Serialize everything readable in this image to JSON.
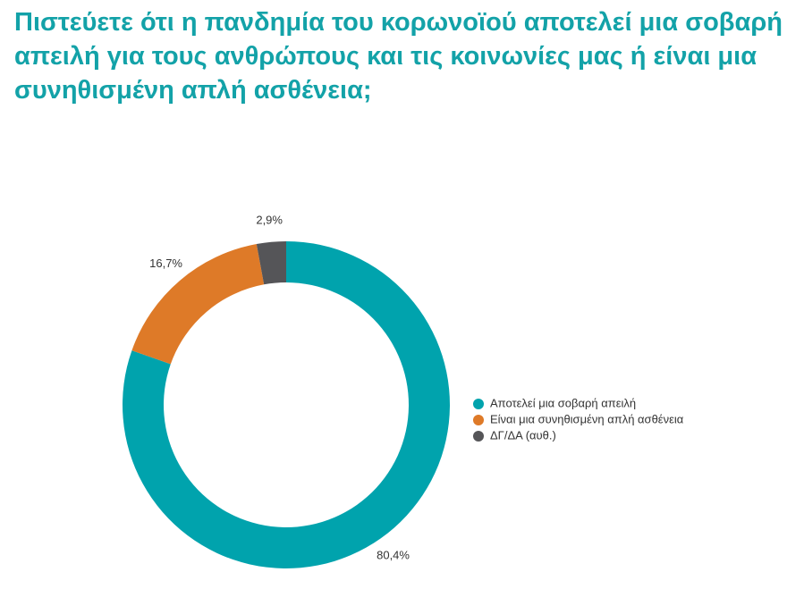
{
  "chart_data": {
    "type": "donut",
    "title": "Πιστεύετε ότι η πανδημία του κορωνοϊού αποτελεί μια σοβαρή απειλή για τους ανθρώπους και τις κοινωνίες μας ή είναι μια συνηθισμένη απλή ασθένεια;",
    "categories": [
      "Αποτελεί μια σοβαρή απειλή",
      "Είναι μια συνηθισμένη απλή ασθένεια",
      "ΔΓ/ΔΑ (αυθ.)"
    ],
    "values": [
      80.4,
      16.7,
      2.9
    ],
    "value_labels": [
      "80,4%",
      "16,7%",
      "2,9%"
    ],
    "colors": [
      "#00a3ad",
      "#de7a28",
      "#555558"
    ],
    "legend": "right"
  }
}
